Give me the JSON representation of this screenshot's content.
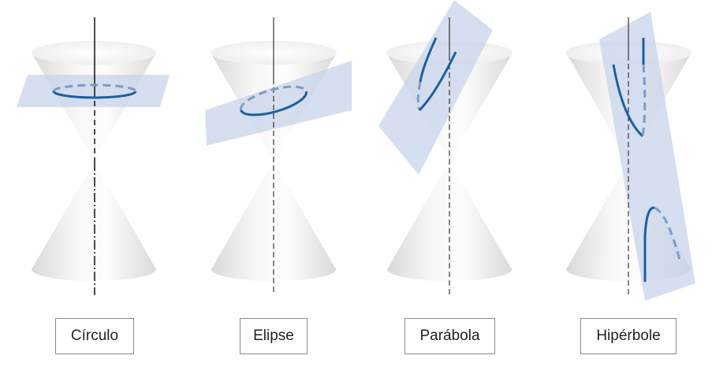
{
  "labels": {
    "circle": "Círculo",
    "ellipse": "Elipse",
    "parabola": "Parábola",
    "hyperbola": "Hipérbole"
  },
  "colors": {
    "curve": "#1b5fa6",
    "curve_hidden": "#7d9bc6",
    "plane": "#c8d4ea",
    "cone_light": "#fafafa",
    "cone_shade": "#dcdcdc",
    "axis": "#111111"
  }
}
